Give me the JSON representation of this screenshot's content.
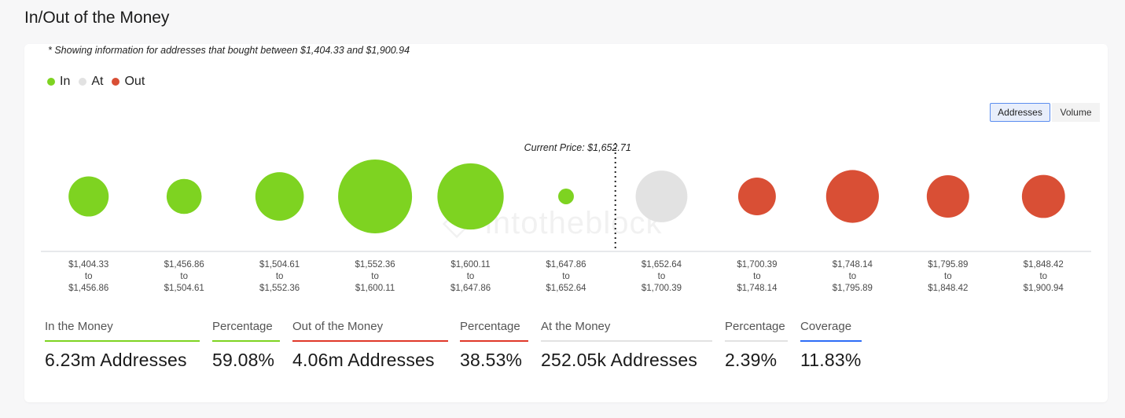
{
  "title": "In/Out of the Money",
  "note": "* Showing information for addresses that bought between $1,404.33 and $1,900.94",
  "watermark": "intotheblock",
  "legend": [
    {
      "label": "In",
      "color": "#7ed321"
    },
    {
      "label": "At",
      "color": "#e2e2e2"
    },
    {
      "label": "Out",
      "color": "#d94f35"
    }
  ],
  "toggles": {
    "addresses": "Addresses",
    "volume": "Volume",
    "selected": "Addresses"
  },
  "current_price_label": "Current Price: $1,652.71",
  "chart_data": {
    "type": "bubble",
    "current_price": 1652.71,
    "categories": [
      {
        "from": "$1,404.33",
        "to_word": "to",
        "to": "$1,456.86",
        "status": "In",
        "size": 0.295
      },
      {
        "from": "$1,456.86",
        "to_word": "to",
        "to": "$1,504.61",
        "status": "In",
        "size": 0.225
      },
      {
        "from": "$1,504.61",
        "to_word": "to",
        "to": "$1,552.36",
        "status": "In",
        "size": 0.43
      },
      {
        "from": "$1,552.36",
        "to_word": "to",
        "to": "$1,600.11",
        "status": "In",
        "size": 1.0
      },
      {
        "from": "$1,600.11",
        "to_word": "to",
        "to": "$1,647.86",
        "status": "In",
        "size": 0.805
      },
      {
        "from": "$1,647.86",
        "to_word": "to",
        "to": "$1,652.64",
        "status": "In",
        "size": 0.045
      },
      {
        "from": "$1,652.64",
        "to_word": "to",
        "to": "$1,700.39",
        "status": "At",
        "size": 0.49
      },
      {
        "from": "$1,700.39",
        "to_word": "to",
        "to": "$1,748.14",
        "status": "Out",
        "size": 0.26
      },
      {
        "from": "$1,748.14",
        "to_word": "to",
        "to": "$1,795.89",
        "status": "Out",
        "size": 0.51
      },
      {
        "from": "$1,795.89",
        "to_word": "to",
        "to": "$1,848.42",
        "status": "Out",
        "size": 0.33
      },
      {
        "from": "$1,848.42",
        "to_word": "to",
        "to": "$1,900.94",
        "status": "Out",
        "size": 0.34
      }
    ]
  },
  "stats": [
    {
      "label": "In the Money",
      "value": "6.23m Addresses",
      "color": "#7ed321"
    },
    {
      "label": "Percentage",
      "value": "59.08%",
      "color": "#7ed321"
    },
    {
      "label": "Out of the Money",
      "value": "4.06m Addresses",
      "color": "#e0382a"
    },
    {
      "label": "Percentage",
      "value": "38.53%",
      "color": "#e0382a"
    },
    {
      "label": "At the Money",
      "value": "252.05k Addresses",
      "color": "#e2e2e2"
    },
    {
      "label": "Percentage",
      "value": "2.39%",
      "color": "#e2e2e2"
    },
    {
      "label": "Coverage",
      "value": "11.83%",
      "color": "#2d6df6"
    }
  ]
}
